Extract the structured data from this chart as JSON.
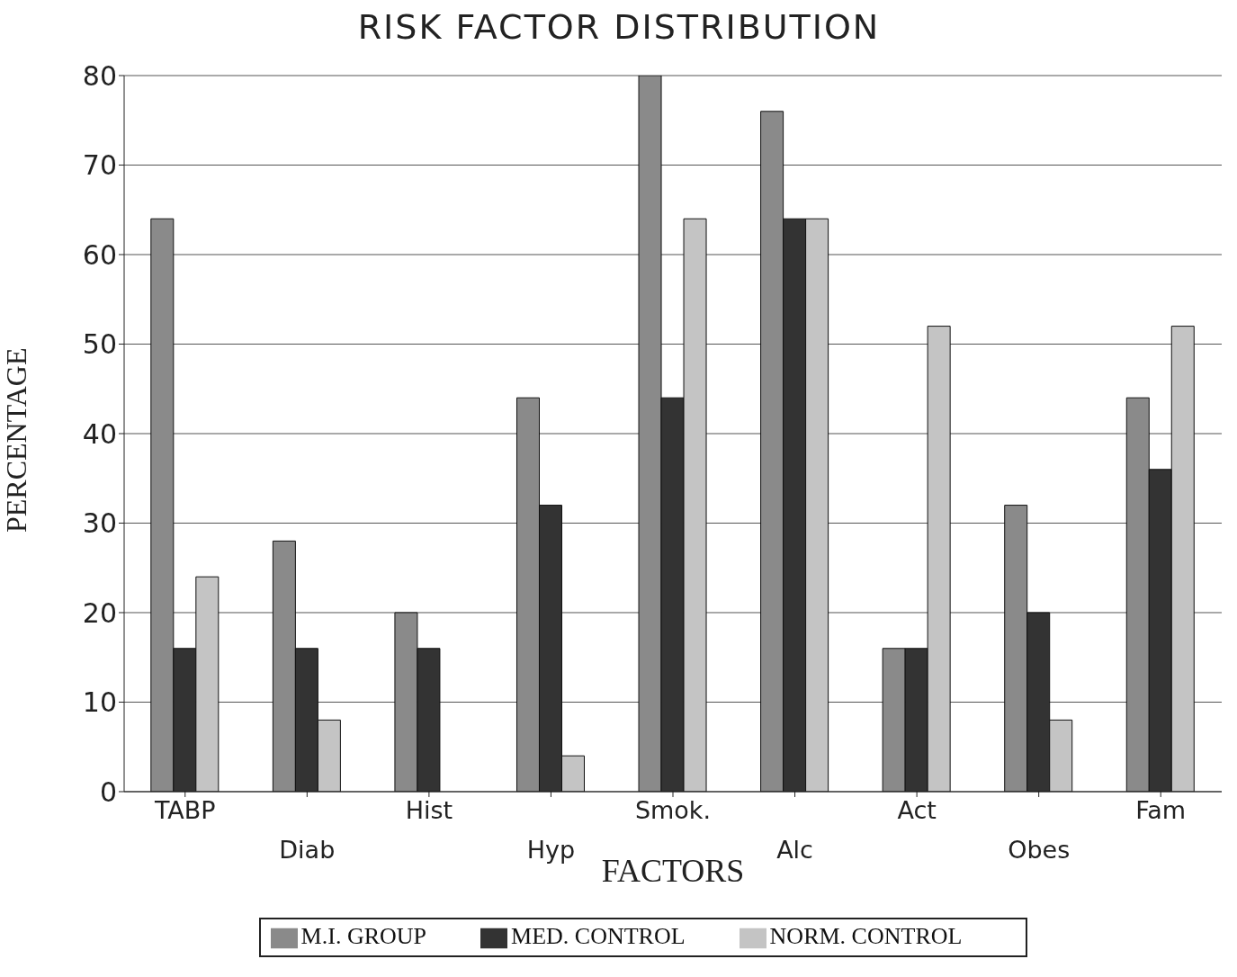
{
  "chart_data": {
    "type": "bar",
    "title": "RISK FACTOR DISTRIBUTION",
    "xlabel": "FACTORS",
    "ylabel": "PERCENTAGE",
    "categories": [
      "TABP",
      "Diab",
      "Hist",
      "Hyp",
      "Smok.",
      "Alc",
      "Act",
      "Obes",
      "Fam"
    ],
    "series": [
      {
        "name": "M.I. GROUP",
        "color": "#8a8a8a",
        "values": [
          64,
          28,
          20,
          44,
          80,
          76,
          16,
          32,
          44
        ]
      },
      {
        "name": "MED. CONTROL",
        "color": "#333333",
        "values": [
          16,
          16,
          16,
          32,
          44,
          64,
          16,
          20,
          36
        ]
      },
      {
        "name": "NORM. CONTROL",
        "color": "#c4c4c4",
        "values": [
          24,
          8,
          0,
          4,
          64,
          64,
          52,
          8,
          52
        ]
      }
    ],
    "ylim": [
      0,
      80
    ],
    "yticks": [
      0,
      10,
      20,
      30,
      40,
      50,
      60,
      70,
      80
    ],
    "grid": "y",
    "legend": "bottom"
  }
}
